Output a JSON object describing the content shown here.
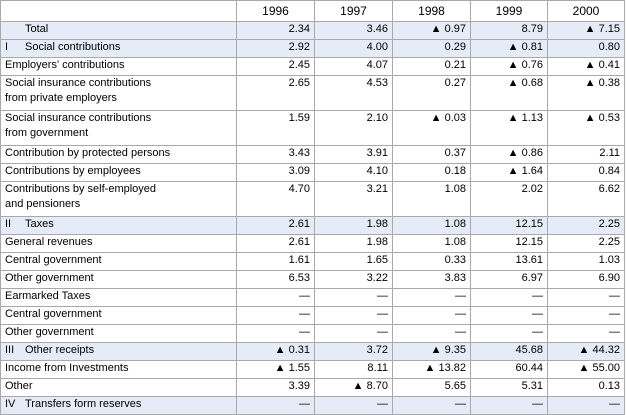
{
  "columns": [
    "",
    "1996",
    "1997",
    "1998",
    "1999",
    "2000"
  ],
  "rows": [
    {
      "roman": "",
      "label": "Total",
      "indent": 0,
      "shade": true,
      "values": [
        "2.34",
        "3.46",
        "▲ 0.97",
        "8.79",
        "▲ 7.15"
      ]
    },
    {
      "roman": "I",
      "label": "Social contributions",
      "indent": 0,
      "shade": true,
      "values": [
        "2.92",
        "4.00",
        "0.29",
        "▲ 0.81",
        "0.80"
      ]
    },
    {
      "roman": "",
      "label": "Employers' contributions",
      "indent": 1,
      "shade": false,
      "values": [
        "2.45",
        "4.07",
        "0.21",
        "▲ 0.76",
        "▲ 0.41"
      ]
    },
    {
      "roman": "",
      "label": "Social insurance contributions from private employers",
      "indent": 2,
      "shade": false,
      "values": [
        "2.65",
        "4.53",
        "0.27",
        "▲ 0.68",
        "▲ 0.38"
      ]
    },
    {
      "roman": "",
      "label": "Social insurance contributions from government",
      "indent": 2,
      "shade": false,
      "values": [
        "1.59",
        "2.10",
        "▲ 0.03",
        "▲ 1.13",
        "▲ 0.53"
      ]
    },
    {
      "roman": "",
      "label": "Contribution by protected persons",
      "indent": 1,
      "shade": false,
      "values": [
        "3.43",
        "3.91",
        "0.37",
        "▲ 0.86",
        "2.11"
      ]
    },
    {
      "roman": "",
      "label": "Contributions by employees",
      "indent": 2,
      "shade": false,
      "values": [
        "3.09",
        "4.10",
        "0.18",
        "▲ 1.64",
        "0.84"
      ]
    },
    {
      "roman": "",
      "label": "Contributions by self-employed and pensioners",
      "indent": 2,
      "shade": false,
      "values": [
        "4.70",
        "3.21",
        "1.08",
        "2.02",
        "6.62"
      ]
    },
    {
      "roman": "II",
      "label": "Taxes",
      "indent": 0,
      "shade": true,
      "values": [
        "2.61",
        "1.98",
        "1.08",
        "12.15",
        "2.25"
      ]
    },
    {
      "roman": "",
      "label": "General revenues",
      "indent": 1,
      "shade": false,
      "values": [
        "2.61",
        "1.98",
        "1.08",
        "12.15",
        "2.25"
      ]
    },
    {
      "roman": "",
      "label": "Central government",
      "indent": 2,
      "shade": false,
      "values": [
        "1.61",
        "1.65",
        "0.33",
        "13.61",
        "1.03"
      ]
    },
    {
      "roman": "",
      "label": "Other government",
      "indent": 2,
      "shade": false,
      "values": [
        "6.53",
        "3.22",
        "3.83",
        "6.97",
        "6.90"
      ]
    },
    {
      "roman": "",
      "label": "Earmarked Taxes",
      "indent": 1,
      "shade": false,
      "values": [
        "—",
        "—",
        "—",
        "—",
        "—"
      ]
    },
    {
      "roman": "",
      "label": "Central government",
      "indent": 2,
      "shade": false,
      "values": [
        "—",
        "—",
        "—",
        "—",
        "—"
      ]
    },
    {
      "roman": "",
      "label": "Other government",
      "indent": 2,
      "shade": false,
      "values": [
        "—",
        "—",
        "—",
        "—",
        "—"
      ]
    },
    {
      "roman": "III",
      "label": "Other receipts",
      "indent": 0,
      "shade": true,
      "values": [
        "▲ 0.31",
        "3.72",
        "▲ 9.35",
        "45.68",
        "▲ 44.32"
      ]
    },
    {
      "roman": "",
      "label": "Income from Investments",
      "indent": 1,
      "shade": false,
      "values": [
        "▲ 1.55",
        "8.11",
        "▲ 13.82",
        "60.44",
        "▲ 55.00"
      ]
    },
    {
      "roman": "",
      "label": "Other",
      "indent": 1,
      "shade": false,
      "values": [
        "3.39",
        "▲ 8.70",
        "5.65",
        "5.31",
        "0.13"
      ]
    },
    {
      "roman": "IV",
      "label": "Transfers form reserves",
      "indent": 0,
      "shade": true,
      "values": [
        "—",
        "—",
        "—",
        "—",
        "—"
      ]
    }
  ]
}
